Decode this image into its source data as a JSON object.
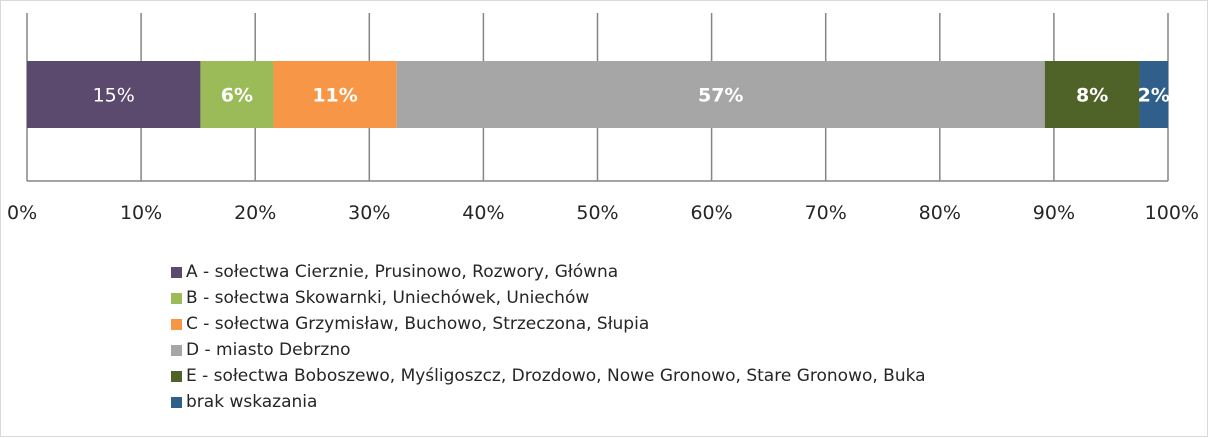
{
  "chart_data": {
    "type": "bar",
    "orientation": "horizontal",
    "stacked": true,
    "normalized": true,
    "title": "",
    "xlabel": "",
    "ylabel": "",
    "xlim": [
      0,
      100
    ],
    "x_ticks": [
      "0%",
      "10%",
      "20%",
      "30%",
      "40%",
      "50%",
      "60%",
      "70%",
      "80%",
      "90%",
      "100%"
    ],
    "grid": true,
    "legend_position": "bottom",
    "series": [
      {
        "name": "A - sołectwa Cierznie, Prusinowo, Rozwory, Główna",
        "value": 15.2,
        "label": "15%",
        "color": "#5b4a6e"
      },
      {
        "name": "B - sołectwa Skowarnki, Uniechówek, Uniechów",
        "value": 6.4,
        "label": "6%",
        "color": "#9bbb59"
      },
      {
        "name": "C - sołectwa Grzymisław, Buchowo, Strzeczona, Słupia",
        "value": 10.8,
        "label": "11%",
        "color": "#f79646"
      },
      {
        "name": "D - miasto Debrzno",
        "value": 56.8,
        "label": "57%",
        "color": "#a6a6a6"
      },
      {
        "name": "E - sołectwa Boboszewo, Myśligoszcz, Drozdowo, Nowe Gronowo, Stare Gronowo, Buka",
        "value": 8.3,
        "label": "8%",
        "color": "#4f6228"
      },
      {
        "name": "brak wskazania",
        "value": 2.5,
        "label": "2%",
        "color": "#2f5f8a"
      }
    ]
  }
}
